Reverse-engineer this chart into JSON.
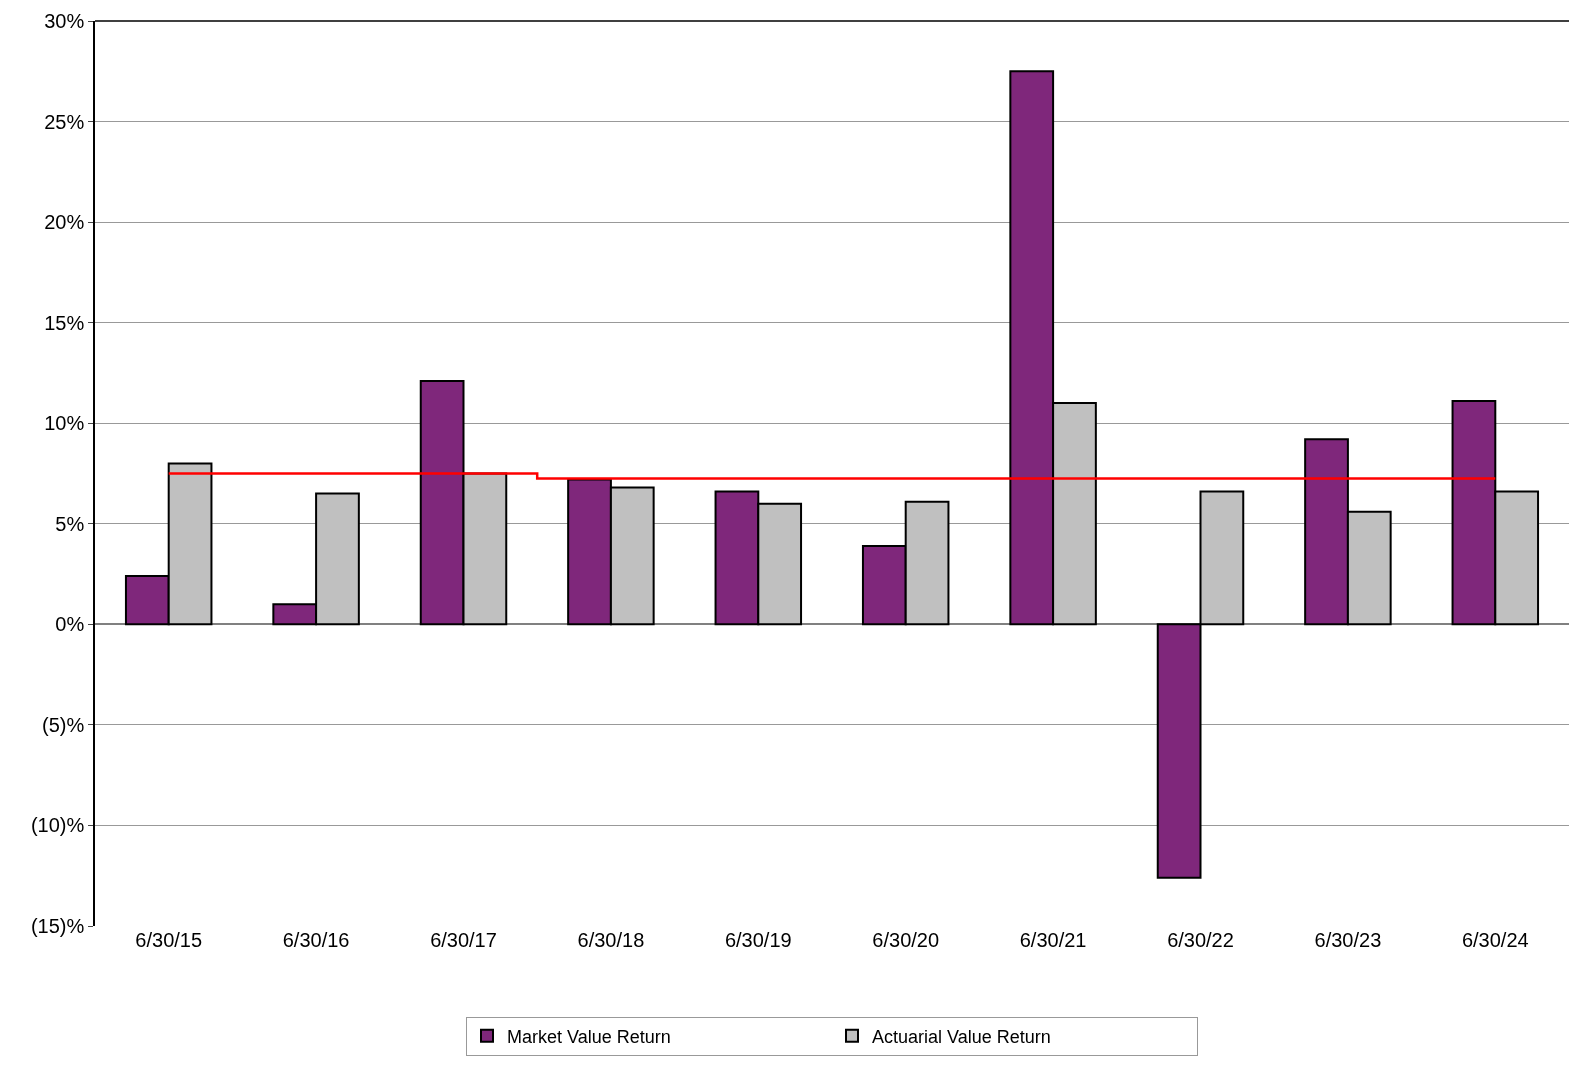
{
  "chart_data": {
    "type": "bar",
    "categories": [
      "6/30/15",
      "6/30/16",
      "6/30/17",
      "6/30/18",
      "6/30/19",
      "6/30/20",
      "6/30/21",
      "6/30/22",
      "6/30/23",
      "6/30/24"
    ],
    "series": [
      {
        "name": "Market Value Return",
        "color": "#7f277b",
        "values": [
          2.4,
          1.0,
          12.1,
          7.2,
          6.6,
          3.9,
          27.5,
          -12.6,
          9.2,
          11.1
        ]
      },
      {
        "name": "Actuarial Value Return",
        "color": "#c0c0c0",
        "values": [
          8.0,
          6.5,
          7.5,
          6.8,
          6.0,
          6.1,
          11.0,
          6.6,
          5.6,
          6.6
        ]
      },
      {
        "type": "step",
        "color": "#ff0000",
        "values": [
          7.5,
          7.5,
          7.5,
          7.25,
          7.25,
          7.25,
          7.25,
          7.25,
          7.25,
          7.25
        ]
      }
    ],
    "ylim": [
      -15,
      30
    ],
    "yticks": [
      {
        "value": -15,
        "label": "(15)%"
      },
      {
        "value": -10,
        "label": "(10)%"
      },
      {
        "value": -5,
        "label": "(5)%"
      },
      {
        "value": 0,
        "label": "0%"
      },
      {
        "value": 5,
        "label": "5%"
      },
      {
        "value": 10,
        "label": "10%"
      },
      {
        "value": 15,
        "label": "15%"
      },
      {
        "value": 20,
        "label": "20%"
      },
      {
        "value": 25,
        "label": "25%"
      },
      {
        "value": 30,
        "label": "30%"
      }
    ],
    "grid": "y",
    "legend": "bottom"
  }
}
